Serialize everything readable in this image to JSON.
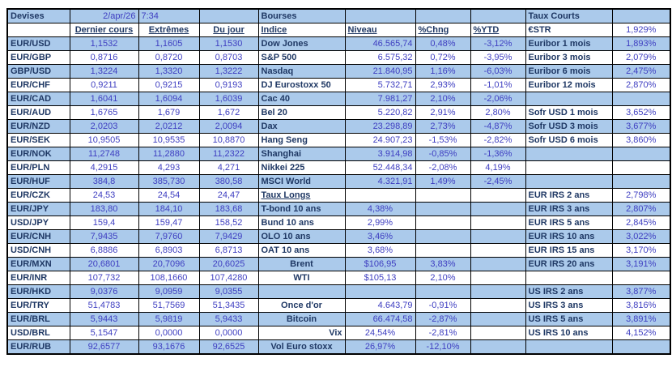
{
  "meta": {
    "date": "2/apr/26",
    "time": "7:34"
  },
  "colors": {
    "row_blue": "#ABCAEB",
    "label_navy": "#1F3864",
    "value_blue": "#3E3EC1",
    "border": "#000000"
  },
  "left": {
    "title": "Devises",
    "headers": [
      "Dernier cours",
      "Extrêmes",
      "Du jour"
    ],
    "rows": [
      [
        "EUR/USD",
        "1,1532",
        "1,1605",
        "1,1530"
      ],
      [
        "EUR/GBP",
        "0,8716",
        "0,8720",
        "0,8703"
      ],
      [
        "GBP/USD",
        "1,3224",
        "1,3320",
        "1,3222"
      ],
      [
        "EUR/CHF",
        "0,9211",
        "0,9215",
        "0,9193"
      ],
      [
        "EUR/CAD",
        "1,6041",
        "1,6094",
        "1,6039"
      ],
      [
        "EUR/AUD",
        "1,6765",
        "1,679",
        "1,672"
      ],
      [
        "EUR/NZD",
        "2,0203",
        "2,0212",
        "2,0094"
      ],
      [
        "EUR/SEK",
        "10,9505",
        "10,9535",
        "10,8870"
      ],
      [
        "EUR/NOK",
        "11,2748",
        "11,2880",
        "11,2322"
      ],
      [
        "EUR/PLN",
        "4,2915",
        "4,293",
        "4,271"
      ],
      [
        "EUR/HUF",
        "384,8",
        "385,730",
        "380,58"
      ],
      [
        "EUR/CZK",
        "24,53",
        "24,54",
        "24,47"
      ],
      [
        "EUR/JPY",
        "183,80",
        "184,10",
        "183,68"
      ],
      [
        "USD/JPY",
        "159,4",
        "159,47",
        "158,52"
      ],
      [
        "EUR/CNH",
        "7,9435",
        "7,9760",
        "7,9429"
      ],
      [
        "USD/CNH",
        "6,8886",
        "6,8903",
        "6,8713"
      ],
      [
        "EUR/MXN",
        "20,6801",
        "20,7096",
        "20,6025"
      ],
      [
        "EUR/INR",
        "107,732",
        "108,1660",
        "107,4280"
      ],
      [
        "EUR/HKD",
        "9,0376",
        "9,0959",
        "9,0355"
      ],
      [
        "EUR/TRY",
        "51,4783",
        "51,7569",
        "51,3435"
      ],
      [
        "EUR/BRL",
        "5,9443",
        "5,9819",
        "5,9433"
      ],
      [
        "USD/BRL",
        "5,1547",
        "0,0000",
        "0,0000"
      ],
      [
        "EUR/RUB",
        "92,6577",
        "93,1676",
        "92,6525"
      ]
    ]
  },
  "middle": {
    "title": "Bourses",
    "headers": [
      "Indice",
      "Niveau",
      "%Chng",
      "%YTD"
    ],
    "indices": [
      [
        "Dow Jones",
        "46.565,74",
        "0,48%",
        "-3,12%"
      ],
      [
        "S&P 500",
        "6.575,32",
        "0,72%",
        "-3,95%"
      ],
      [
        "Nasdaq",
        "21.840,95",
        "1,16%",
        "-6,03%"
      ],
      [
        "DJ Eurostoxx 50",
        "5.732,71",
        "2,93%",
        "-1,01%"
      ],
      [
        "Cac 40",
        "7.981,27",
        "2,10%",
        "-2,06%"
      ],
      [
        "Bel 20",
        "5.220,82",
        "2,91%",
        "2,80%"
      ],
      [
        "Dax",
        "23.298,89",
        "2,73%",
        "-4,87%"
      ],
      [
        "Hang Seng",
        "24.907,23",
        "-1,53%",
        "-2,82%"
      ],
      [
        "Shanghai",
        "3.914,98",
        "-0,85%",
        "-1,36%"
      ],
      [
        "Nikkei 225",
        "52.448,34",
        "-2,08%",
        "4,19%"
      ],
      [
        "MSCI World",
        "4.321,91",
        "1,49%",
        "-2,45%"
      ]
    ],
    "taux_longs": {
      "title": "Taux Longs",
      "rows": [
        [
          "T-bond 10 ans",
          "4,38%"
        ],
        [
          "Bund 10 ans",
          "2,99%"
        ],
        [
          "OLO 10 ans",
          "3,46%"
        ],
        [
          "OAT 10 ans",
          "3,68%"
        ]
      ]
    },
    "commodities": [
      [
        "Brent",
        "$106,95",
        "3,83%"
      ],
      [
        "WTI",
        "$105,13",
        "2,10%"
      ]
    ],
    "others": [
      [
        "Once d'or",
        "4.643,79",
        "-0,91%"
      ],
      [
        "Bitcoin",
        "66.474,58",
        "-2,87%"
      ],
      [
        "Vix",
        "24,54%",
        "-2,81%"
      ],
      [
        "Vol Euro stoxx",
        "26,97%",
        "-12,10%"
      ]
    ]
  },
  "taux_courts": {
    "title": "Taux Courts",
    "rows": [
      [
        "€STR",
        "1,929%"
      ],
      [
        "Euribor 1 mois",
        "1,893%"
      ],
      [
        "Euribor 3 mois",
        "2,079%"
      ],
      [
        "Euribor 6 mois",
        "2,475%"
      ],
      [
        "Euribor 12 mois",
        "2,870%"
      ],
      null,
      [
        "Sofr USD 1 mois",
        "3,652%"
      ],
      [
        "Sofr USD 3 mois",
        "3,677%"
      ],
      [
        "Sofr USD 6 mois",
        "3,860%"
      ],
      null,
      null,
      null,
      [
        "EUR IRS 2 ans",
        "2,798%"
      ],
      [
        "EUR IRS 3 ans",
        "2,807%"
      ],
      [
        "EUR IRS 5 ans",
        "2,845%"
      ],
      [
        "EUR IRS 10 ans",
        "3,022%"
      ],
      [
        "EUR IRS 15 ans",
        "3,170%"
      ],
      [
        "EUR IRS 20 ans",
        "3,191%"
      ],
      null,
      [
        "US IRS 2 ans",
        "3,877%"
      ],
      [
        "US IRS 3 ans",
        "3,816%"
      ],
      [
        "US IRS 5 ans",
        "3,891%"
      ],
      [
        "US IRS 10 ans",
        "4,152%"
      ],
      null
    ]
  }
}
